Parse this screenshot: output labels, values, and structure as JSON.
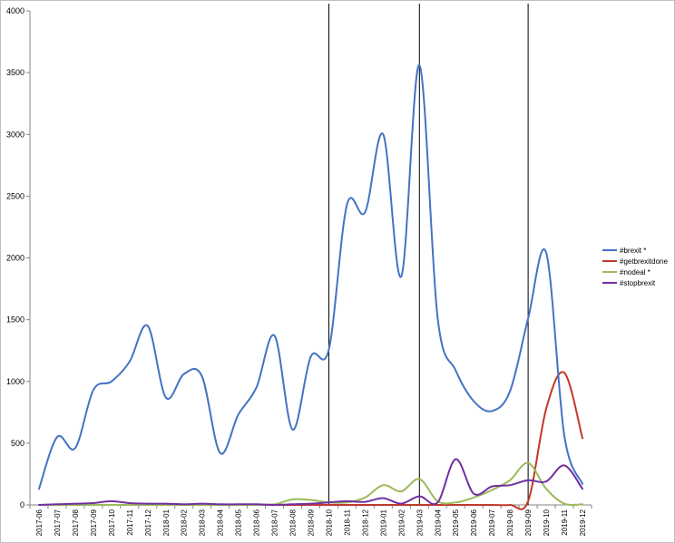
{
  "chart_data": {
    "type": "line",
    "title": "",
    "xlabel": "",
    "ylabel": "",
    "ylim": [
      0,
      4000
    ],
    "yticks": [
      "0",
      "500",
      "1000",
      "1500",
      "2000",
      "2500",
      "3000",
      "3500",
      "4000"
    ],
    "categories": [
      "2017-06",
      "2017-07",
      "2017-08",
      "2017-09",
      "2017-10",
      "2017-11",
      "2017-12",
      "2018-01",
      "2018-02",
      "2018-03",
      "2018-04",
      "2018-05",
      "2018-06",
      "2018-07",
      "2018-08",
      "2018-09",
      "2018-10",
      "2018-11",
      "2018-12",
      "2019-01",
      "2019-02",
      "2019-03",
      "2019-04",
      "2019-05",
      "2019-06",
      "2019-07",
      "2019-08",
      "2019-09",
      "2019-10",
      "2019-11",
      "2019-12"
    ],
    "grid": false,
    "legend_position": "right",
    "vertical_markers": [
      "2018-10",
      "2019-03",
      "2019-09"
    ],
    "series": [
      {
        "name": "#brexit *",
        "color": "#4472C4",
        "values": [
          130,
          550,
          460,
          930,
          1000,
          1160,
          1450,
          870,
          1060,
          1040,
          420,
          730,
          950,
          1370,
          610,
          1200,
          1260,
          2430,
          2370,
          3000,
          1850,
          3560,
          1520,
          1090,
          840,
          760,
          920,
          1510,
          2040,
          560,
          170
        ]
      },
      {
        "name": "#getbrexitdone",
        "color": "#C0392B",
        "values": [
          0,
          0,
          0,
          0,
          0,
          0,
          0,
          0,
          0,
          0,
          0,
          0,
          0,
          0,
          0,
          0,
          0,
          0,
          0,
          0,
          0,
          0,
          0,
          0,
          0,
          0,
          0,
          30,
          780,
          1070,
          540
        ]
      },
      {
        "name": "#nodeal *",
        "color": "#9BBB59",
        "values": [
          0,
          0,
          0,
          0,
          0,
          0,
          0,
          0,
          0,
          0,
          0,
          0,
          0,
          5,
          45,
          40,
          20,
          20,
          60,
          160,
          110,
          210,
          30,
          20,
          60,
          120,
          200,
          340,
          130,
          10,
          5
        ]
      },
      {
        "name": "#stopbrexit",
        "color": "#7030A0",
        "values": [
          0,
          5,
          10,
          15,
          30,
          15,
          10,
          10,
          5,
          10,
          5,
          5,
          5,
          0,
          5,
          10,
          20,
          30,
          25,
          55,
          10,
          70,
          20,
          370,
          90,
          150,
          160,
          200,
          190,
          320,
          130
        ]
      }
    ]
  }
}
